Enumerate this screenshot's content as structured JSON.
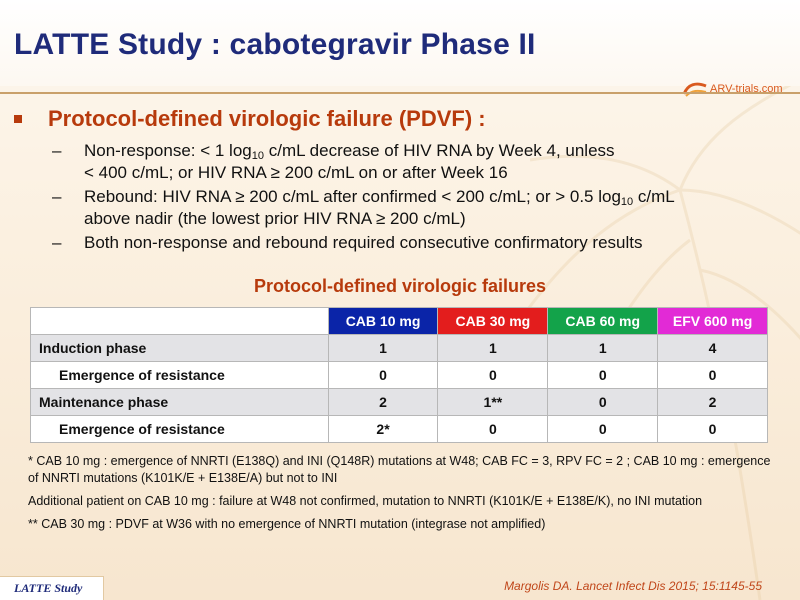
{
  "title": "LATTE Study : cabotegravir Phase II",
  "logo": {
    "text": "ARV-trials.com",
    "icon": "arv-logo-icon"
  },
  "bullet": {
    "heading": "Protocol-defined virologic failure (PDVF) :",
    "subs": [
      {
        "line1_a": "Non-response: < 1 log",
        "line1_sub": "10",
        "line1_b": " c/mL decrease of HIV RNA by Week 4, unless",
        "line2": "< 400 c/mL; or  HIV RNA ≥ 200 c/mL on or after Week 16"
      },
      {
        "line1_a": "Rebound: HIV RNA ≥ 200 c/mL after confirmed < 200 c/mL; or > 0.5 log",
        "line1_sub": "10",
        "line1_b": " c/mL",
        "line2": "above nadir (the lowest prior HIV RNA ≥ 200 c/mL)"
      },
      {
        "line1_a": "Both non-response and rebound required consecutive confirmatory results",
        "line1_sub": "",
        "line1_b": "",
        "line2": ""
      }
    ]
  },
  "table": {
    "title": "Protocol-defined virologic failures",
    "columns": [
      "CAB 10 mg",
      "CAB 30 mg",
      "CAB 60 mg",
      "EFV 600 mg"
    ],
    "column_colors": [
      "#0a24a8",
      "#e31d1d",
      "#13a34a",
      "#e22ad6"
    ],
    "rows": [
      {
        "label": "Induction phase",
        "values": [
          "1",
          "1",
          "1",
          "4"
        ]
      },
      {
        "label": "Emergence of resistance",
        "values": [
          "0",
          "0",
          "0",
          "0"
        ]
      },
      {
        "label": "Maintenance phase",
        "values": [
          "2",
          "1**",
          "0",
          "2"
        ]
      },
      {
        "label": "Emergence of resistance",
        "values": [
          "2*",
          "0",
          "0",
          "0"
        ]
      }
    ]
  },
  "notes": [
    "* CAB 10 mg : emergence of NNRTI (E138Q) and INI (Q148R) mutations at W48; CAB FC = 3, RPV FC = 2 ; CAB 10 mg : emergence of NNRTI mutations (K101K/E + E138E/A) but not to INI",
    "Additional patient on CAB 10 mg : failure at W48 not confirmed, mutation to NNRTI (K101K/E + E138E/K), no INI mutation",
    "** CAB 30 mg : PDVF at W36 with no emergence of NNRTI mutation (integrase not amplified)"
  ],
  "footer": {
    "tag": "LATTE Study",
    "citation": "Margolis DA. Lancet Infect Dis 2015; 15:1145-55"
  }
}
